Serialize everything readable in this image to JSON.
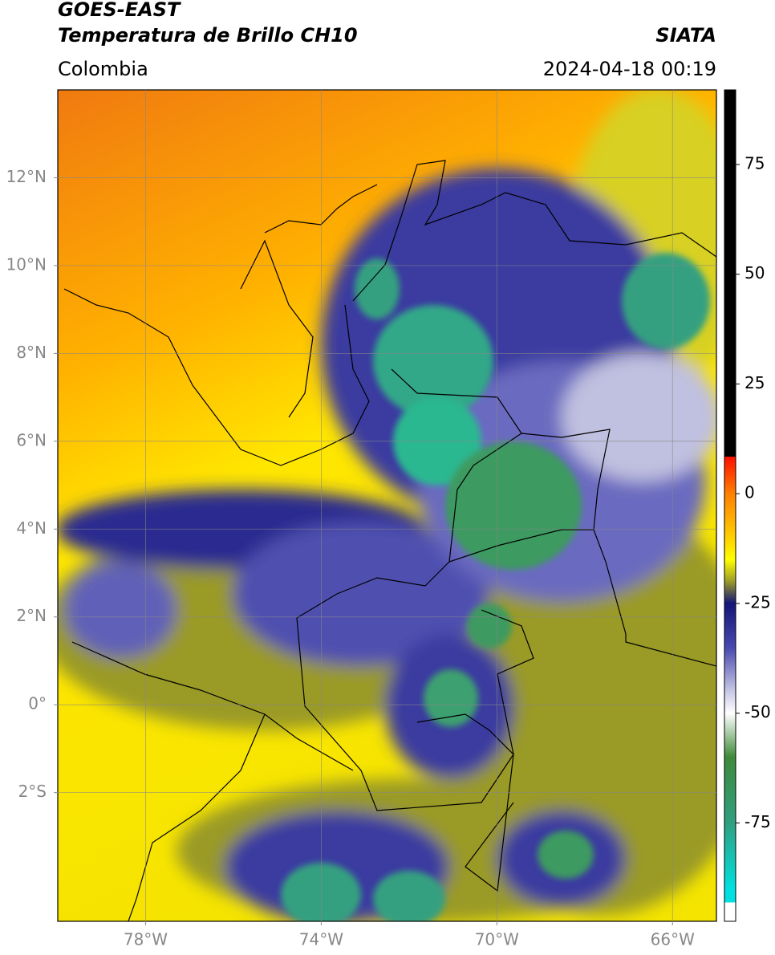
{
  "header": {
    "title": "GOES-EAST",
    "subtitle": "Temperatura de Brillo CH10",
    "source": "SIATA",
    "region": "Colombia",
    "datetime": "2024-04-18 00:19"
  },
  "map": {
    "lonlim": [
      -80,
      -65
    ],
    "latlim": [
      -4.93,
      14
    ],
    "grid": true,
    "lonticks": [
      {
        "value": -78,
        "label": "78°W"
      },
      {
        "value": -74,
        "label": "74°W"
      },
      {
        "value": -70,
        "label": "70°W"
      },
      {
        "value": -66,
        "label": "66°W"
      }
    ],
    "latticks": [
      {
        "value": 12,
        "label": "12°N"
      },
      {
        "value": 10,
        "label": "10°N"
      },
      {
        "value": 8,
        "label": "8°N"
      },
      {
        "value": 6,
        "label": "6°N"
      },
      {
        "value": 4,
        "label": "4°N"
      },
      {
        "value": 2,
        "label": "2°N"
      },
      {
        "value": 0,
        "label": "0°"
      },
      {
        "value": -2,
        "label": "2°S"
      }
    ]
  },
  "colorbar": {
    "lim": [
      -97.4,
      92
    ],
    "ticks": [
      75,
      50,
      25,
      0,
      -25,
      -50,
      -75
    ],
    "colormap": [
      {
        "value": 92,
        "color": "#000000"
      },
      {
        "value": 8.5,
        "color": "#000000"
      },
      {
        "value": 8.4,
        "color": "#ff1000"
      },
      {
        "value": 0,
        "color": "#ff8000"
      },
      {
        "value": -10,
        "color": "#ffd000"
      },
      {
        "value": -15,
        "color": "#ffff00"
      },
      {
        "value": -20,
        "color": "#9a9a28"
      },
      {
        "value": -25,
        "color": "#14147a"
      },
      {
        "value": -35,
        "color": "#4848b0"
      },
      {
        "value": -45,
        "color": "#c8c8e6"
      },
      {
        "value": -50,
        "color": "#ffffff"
      },
      {
        "value": -60,
        "color": "#3f8a3a"
      },
      {
        "value": -75,
        "color": "#2fa080"
      },
      {
        "value": -90,
        "color": "#00e0e0"
      },
      {
        "value": -93,
        "color": "#00e0e0"
      },
      {
        "value": -93.2,
        "color": "#ffffff"
      },
      {
        "value": -97.4,
        "color": "#ffffff"
      }
    ]
  }
}
